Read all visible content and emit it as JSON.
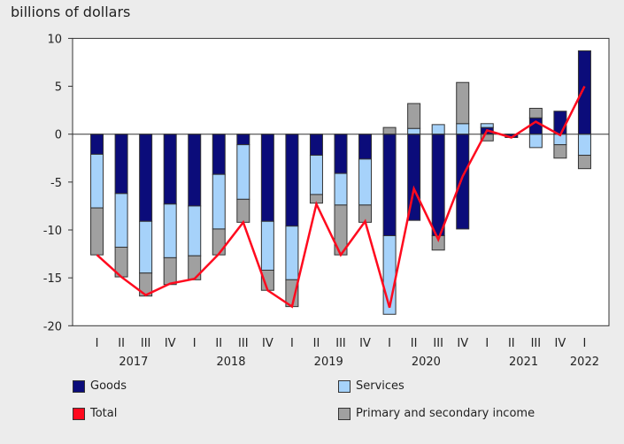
{
  "chart_data": {
    "type": "bar",
    "stacked": true,
    "ylabel": "billions of dollars",
    "ylim": [
      -20,
      10
    ],
    "yticks": [
      10,
      5,
      0,
      -5,
      -10,
      -15,
      -20
    ],
    "grid": false,
    "legend_position": "bottom",
    "categories": [
      "I",
      "II",
      "III",
      "IV",
      "I",
      "II",
      "III",
      "IV",
      "I",
      "II",
      "III",
      "IV",
      "I",
      "II",
      "III",
      "IV",
      "I",
      "II",
      "III",
      "IV",
      "I"
    ],
    "years": [
      {
        "label": "2017",
        "start": 0,
        "end": 3
      },
      {
        "label": "2018",
        "start": 4,
        "end": 7
      },
      {
        "label": "2019",
        "start": 8,
        "end": 11
      },
      {
        "label": "2020",
        "start": 12,
        "end": 15
      },
      {
        "label": "2021",
        "start": 16,
        "end": 19
      },
      {
        "label": "2022",
        "start": 20,
        "end": 20
      }
    ],
    "series": [
      {
        "name": "Goods",
        "type": "bar",
        "color": "#0b0c7a",
        "values": [
          -2.1,
          -6.2,
          -9.1,
          -7.3,
          -7.5,
          -4.2,
          -1.1,
          -9.1,
          -9.6,
          -2.2,
          -4.1,
          -2.6,
          -10.6,
          -9.0,
          -10.6,
          -9.9,
          0.7,
          -0.35,
          1.7,
          2.4,
          8.7
        ]
      },
      {
        "name": "Services",
        "type": "bar",
        "color": "#a6d2fa",
        "values": [
          -5.6,
          -5.6,
          -5.4,
          -5.6,
          -5.2,
          -5.7,
          -5.7,
          -5.1,
          -5.6,
          -4.1,
          -3.3,
          -4.8,
          -8.2,
          0.6,
          1.0,
          1.1,
          0.4,
          0.0,
          -1.4,
          -1.1,
          -2.2
        ]
      },
      {
        "name": "Primary and secondary income",
        "type": "bar",
        "color": "#a0a0a0",
        "values": [
          -4.9,
          -3.1,
          -2.4,
          -2.8,
          -2.5,
          -2.7,
          -2.4,
          -2.1,
          -2.8,
          -0.9,
          -5.2,
          -1.8,
          0.7,
          2.6,
          -1.5,
          4.3,
          -0.7,
          0.0,
          1.0,
          -1.4,
          -1.4
        ]
      },
      {
        "name": "Total",
        "type": "line",
        "color": "#ff0a1e",
        "values": [
          -12.6,
          -14.9,
          -16.8,
          -15.6,
          -15.1,
          -12.5,
          -9.2,
          -16.3,
          -18.0,
          -7.3,
          -12.6,
          -9.1,
          -18.1,
          -5.7,
          -11.0,
          -4.4,
          0.4,
          -0.35,
          1.3,
          -0.1,
          5.0
        ]
      }
    ],
    "legend": [
      "Goods",
      "Services",
      "Total",
      "Primary and secondary income"
    ]
  }
}
